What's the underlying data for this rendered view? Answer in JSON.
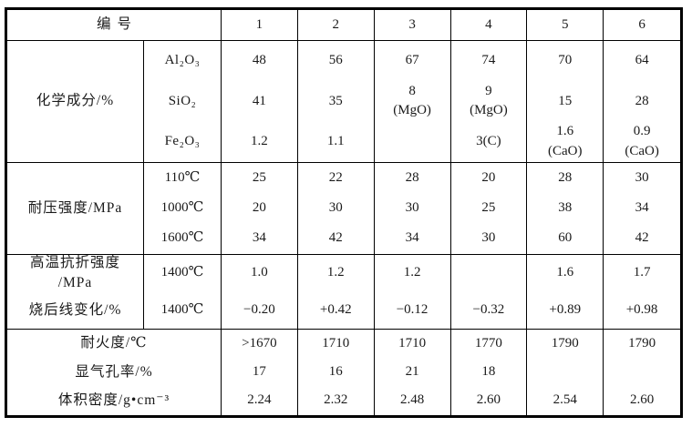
{
  "table": {
    "header": {
      "row_label": "编号",
      "columns": [
        "1",
        "2",
        "3",
        "4",
        "5",
        "6"
      ]
    },
    "chemistry": {
      "label": "化学成分/%",
      "rows": [
        {
          "component": "Al₂O₃",
          "values": [
            "48",
            "56",
            "67",
            "74",
            "70",
            "64"
          ]
        },
        {
          "component": "SiO₂",
          "values": [
            "41",
            "35",
            "8\n(MgO)",
            "9\n(MgO)",
            "15",
            "28"
          ]
        },
        {
          "component": "Fe₂O₃",
          "values": [
            "1.2",
            "1.1",
            "",
            "3(C)",
            "1.6\n(CaO)",
            "0.9\n(CaO)"
          ]
        }
      ]
    },
    "compressive_strength": {
      "label": "耐压强度/MPa",
      "rows": [
        {
          "condition": "110℃",
          "values": [
            "25",
            "22",
            "28",
            "20",
            "28",
            "30"
          ]
        },
        {
          "condition": "1000℃",
          "values": [
            "20",
            "30",
            "30",
            "25",
            "38",
            "34"
          ]
        },
        {
          "condition": "1600℃",
          "values": [
            "34",
            "42",
            "34",
            "30",
            "60",
            "42"
          ]
        }
      ]
    },
    "hot_properties": {
      "rows": [
        {
          "label": "高温抗折强度\n/MPa",
          "condition": "1400℃",
          "values": [
            "1.0",
            "1.2",
            "1.2",
            "",
            "1.6",
            "1.7"
          ]
        },
        {
          "label": "烧后线变化/%",
          "condition": "1400℃",
          "values": [
            "−0.20",
            "+0.42",
            "−0.12",
            "−0.32",
            "+0.89",
            "+0.98"
          ]
        }
      ]
    },
    "summary": {
      "rows": [
        {
          "label": "耐火度/℃",
          "values": [
            ">1670",
            "1710",
            "1710",
            "1770",
            "1790",
            "1790"
          ]
        },
        {
          "label": "显气孔率/%",
          "values": [
            "17",
            "16",
            "21",
            "18",
            "",
            ""
          ]
        },
        {
          "label": "体积密度/g•cm⁻³",
          "values": [
            "2.24",
            "2.32",
            "2.48",
            "2.60",
            "2.54",
            "2.60"
          ]
        }
      ]
    }
  }
}
